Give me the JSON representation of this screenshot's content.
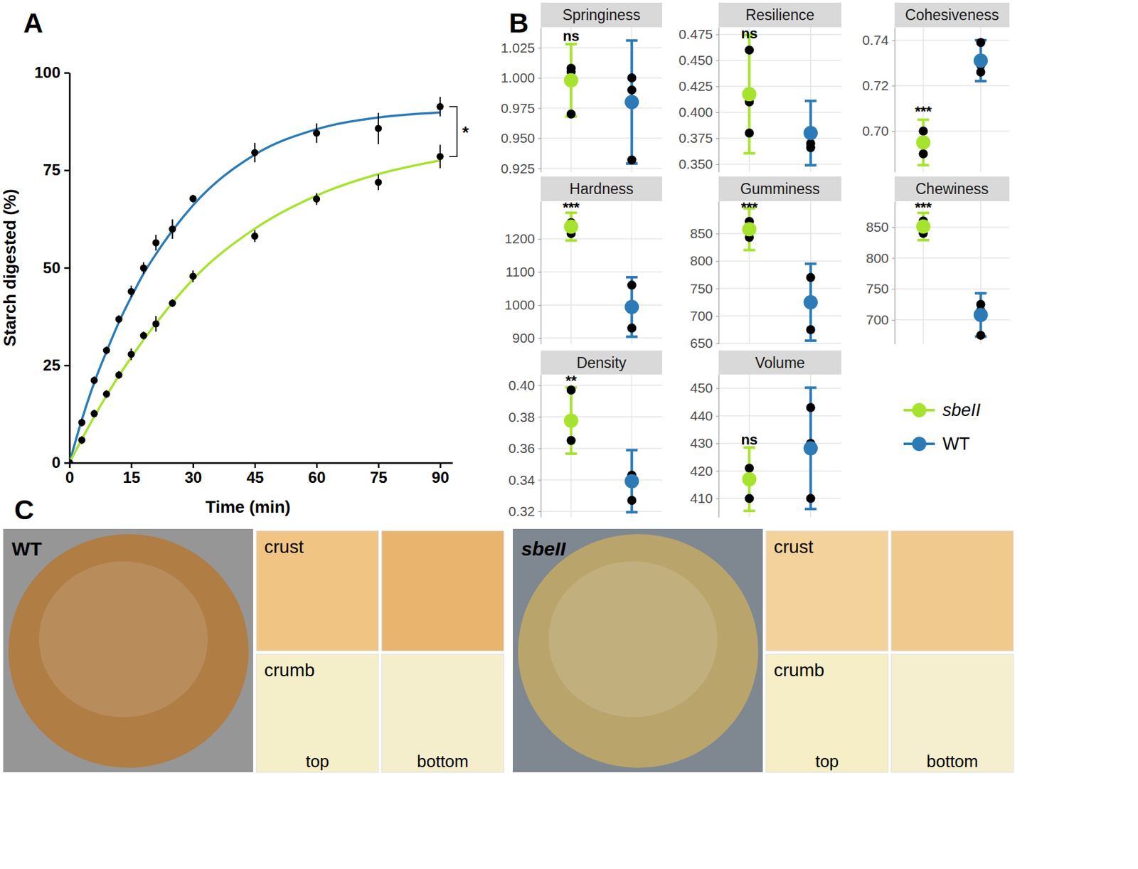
{
  "chart_data": [
    {
      "type": "line",
      "title": "A",
      "x_label": "Time (min)",
      "y_label": "Starch digested (%)",
      "xlim": [
        0,
        93
      ],
      "ylim": [
        0,
        100
      ],
      "xticks": [
        0,
        15,
        30,
        45,
        60,
        75,
        90
      ],
      "yticks": [
        0,
        25,
        50,
        75,
        100
      ],
      "x": [
        0,
        3,
        6,
        9,
        12,
        15,
        18,
        21,
        25,
        30,
        45,
        60,
        75,
        90
      ],
      "series": [
        {
          "type": "line",
          "color": "#2c7bb6",
          "values": [
            0,
            11,
            20.5,
            28.5,
            36,
            42.5,
            48.5,
            53.5,
            59.5,
            66,
            79,
            85.5,
            88.5,
            89.8
          ]
        },
        {
          "type": "line",
          "color": "#a6e32e",
          "values": [
            0,
            6,
            11.8,
            17.2,
            22.3,
            27,
            31.5,
            35.7,
            41,
            47,
            60,
            68.5,
            74,
            77.5
          ]
        },
        {
          "type": "scatter",
          "color": "#000000",
          "marker": "circle",
          "values": [
            0,
            10.3,
            21.1,
            28.8,
            36.8,
            43.9,
            49.9,
            56.4,
            59.9,
            67.7,
            79.5,
            84.5,
            85.7,
            91.3
          ],
          "errors": [
            0,
            1,
            1,
            1,
            1,
            1.5,
            1.5,
            2,
            2.5,
            1,
            2.5,
            2.5,
            4,
            2.5
          ]
        },
        {
          "type": "scatter",
          "color": "#000000",
          "marker": "circle",
          "values": [
            0,
            5.8,
            12.6,
            17.6,
            22.5,
            27.8,
            32.6,
            35.6,
            40.9,
            47.8,
            58.1,
            67.6,
            71.9,
            78.5
          ],
          "errors": [
            0,
            1,
            1,
            1,
            1,
            1.5,
            1,
            2,
            1,
            1.5,
            1.5,
            1.5,
            2,
            3
          ]
        }
      ],
      "annotations": [
        {
          "text": "*",
          "x": 90
        }
      ]
    },
    {
      "type": "scatter",
      "title": "B",
      "legend": "right",
      "series": [
        {
          "name": "sbeII",
          "color": "#a6e32e"
        },
        {
          "name": "WT",
          "color": "#2c7bb6"
        }
      ],
      "facets": [
        {
          "title": "Springiness",
          "ylim": [
            0.922,
            1.042
          ],
          "yticks": [
            0.925,
            {
              "value": 0.95,
              "label": "0.950"
            },
            0.975,
            {
              "value": 1,
              "label": "1.000"
            },
            1.025
          ],
          "means": [
            0.998,
            0.98
          ],
          "errors": [
            0.03,
            0.051
          ],
          "points": [
            [
              1.008,
              1.005,
              0.97
            ],
            [
              1.0,
              0.99,
              0.932
            ]
          ],
          "significance": "ns"
        },
        {
          "title": "Resilience",
          "ylim": [
            0.3425,
            0.482
          ],
          "yticks": [
            {
              "value": 0.35,
              "label": "0.350"
            },
            0.375,
            {
              "value": 0.4,
              "label": "0.400"
            },
            0.425,
            {
              "value": 0.45,
              "label": "0.450"
            },
            0.475
          ],
          "means": [
            0.4175,
            0.38
          ],
          "errors": [
            0.057,
            0.031
          ],
          "points": [
            [
              0.46,
              0.41,
              0.38
            ],
            [
              0.38,
              0.37,
              0.366
            ]
          ],
          "significance": "ns"
        },
        {
          "title": "Cohesiveness",
          "ylim": [
            0.682,
            0.7457
          ],
          "yticks": [
            {
              "value": 0.7,
              "label": "0.70"
            },
            0.72,
            0.74
          ],
          "means": [
            0.695,
            0.731
          ],
          "errors": [
            0.01,
            0.009
          ],
          "points": [
            [
              0.7,
              0.695,
              0.69
            ],
            [
              0.739,
              0.729,
              0.726
            ]
          ],
          "significance": "***"
        },
        {
          "title": "Hardness",
          "ylim": [
            882,
            1314
          ],
          "yticks": [
            900,
            1000,
            1100,
            1200
          ],
          "means": [
            1237,
            994
          ],
          "errors": [
            42,
            90
          ],
          "points": [
            [
              1249,
              1235,
              1216
            ],
            [
              1060,
              990,
              930
            ]
          ],
          "significance": "***"
        },
        {
          "title": "Gumminess",
          "ylim": [
            649,
            909
          ],
          "yticks": [
            650,
            700,
            750,
            800,
            850
          ],
          "means": [
            858,
            725
          ],
          "errors": [
            38,
            70
          ],
          "points": [
            [
              872,
              858,
              843
            ],
            [
              770,
              725,
              675
            ]
          ],
          "significance": "***"
        },
        {
          "title": "Chewiness",
          "ylim": [
            661,
            892
          ],
          "yticks": [
            700,
            750,
            800,
            850
          ],
          "means": [
            851,
            708
          ],
          "errors": [
            22,
            35
          ],
          "points": [
            [
              860,
              850,
              840
            ],
            [
              725,
              715,
              675
            ]
          ],
          "significance": "***"
        },
        {
          "title": "Density",
          "ylim": [
            0.3163,
            0.4069
          ],
          "yticks": [
            0.32,
            0.34,
            0.36,
            0.38,
            {
              "value": 0.4,
              "label": "0.40"
            }
          ],
          "means": [
            0.3776,
            0.3392
          ],
          "errors": [
            0.021,
            0.0197
          ],
          "points": [
            [
              0.397,
              0.378,
              0.365
            ],
            [
              0.343,
              0.338,
              0.327
            ]
          ],
          "significance": "**"
        },
        {
          "title": "Volume",
          "ylim": [
            403.2,
            455
          ],
          "yticks": [
            410,
            420,
            430,
            440,
            450
          ],
          "means": [
            417,
            428.2
          ],
          "errors": [
            11.5,
            22
          ],
          "points": [
            [
              421,
              417,
              410
            ],
            [
              443,
              430,
              410
            ]
          ],
          "significance": "ns"
        }
      ]
    }
  ],
  "photo_panel": {
    "title": "C",
    "photos": [
      {
        "label": "WT",
        "crust": "crust",
        "crumb": "crumb",
        "top": "top",
        "bottom": "bottom"
      },
      {
        "label": "sbeII",
        "crust": "crust",
        "crumb": "crumb",
        "top": "top",
        "bottom": "bottom"
      }
    ]
  }
}
